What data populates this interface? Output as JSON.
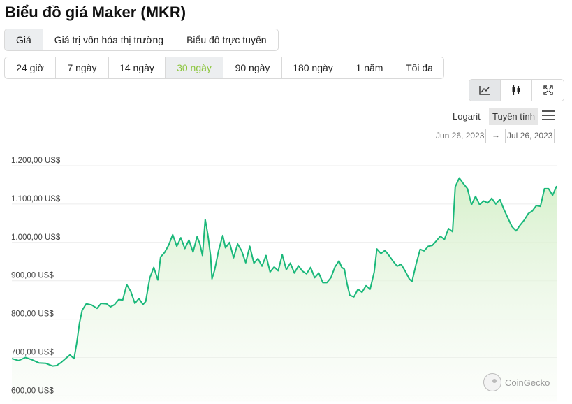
{
  "title": "Biểu đồ giá Maker (MKR)",
  "tabs": [
    {
      "label": "Giá",
      "active": true
    },
    {
      "label": "Giá trị vốn hóa thị trường",
      "active": false
    },
    {
      "label": "Biểu đồ trực tuyến",
      "active": false
    }
  ],
  "ranges": [
    {
      "label": "24 giờ",
      "active": false
    },
    {
      "label": "7 ngày",
      "active": false
    },
    {
      "label": "14 ngày",
      "active": false
    },
    {
      "label": "30 ngày",
      "active": true
    },
    {
      "label": "90 ngày",
      "active": false
    },
    {
      "label": "180 ngày",
      "active": false
    },
    {
      "label": "1 năm",
      "active": false
    },
    {
      "label": "Tối đa",
      "active": false
    }
  ],
  "chart_type_buttons": [
    {
      "icon": "line-chart-icon",
      "active": true
    },
    {
      "icon": "candlestick-icon",
      "active": false
    },
    {
      "icon": "fullscreen-icon",
      "active": false
    }
  ],
  "scale": {
    "log_label": "Logarit",
    "linear_label": "Tuyến tính",
    "selected": "linear"
  },
  "date_range": {
    "from": "Jun 26, 2023",
    "arrow": "→",
    "to": "Jul 26, 2023"
  },
  "watermark": "CoinGecko",
  "colors": {
    "line": "#1ab87a",
    "fill_top": "#d4efc8",
    "active_range": "#8dc63f"
  },
  "chart_data": {
    "type": "area",
    "y_tick_labels": [
      "1.200,00 US$",
      "1.100,00 US$",
      "1.000,00 US$",
      "900,00 US$",
      "800,00 US$",
      "700,00 US$",
      "600,00 US$"
    ],
    "y_ticks": [
      1200,
      1100,
      1000,
      900,
      800,
      700,
      600
    ],
    "ylim": [
      600,
      1200
    ],
    "grid": true,
    "x_start": "2023-06-26",
    "x_end": "2023-07-26",
    "x_unit": "days",
    "series": [
      {
        "values": [
          [
            0.0,
            697
          ],
          [
            0.5,
            692
          ],
          [
            1.0,
            700
          ],
          [
            1.5,
            694
          ],
          [
            2.0,
            686
          ],
          [
            2.5,
            685
          ],
          [
            3.0,
            678
          ],
          [
            3.3,
            679
          ],
          [
            3.6,
            686
          ],
          [
            4.0,
            698
          ],
          [
            4.3,
            707
          ],
          [
            4.6,
            697
          ],
          [
            4.8,
            738
          ],
          [
            5.0,
            790
          ],
          [
            5.2,
            823
          ],
          [
            5.5,
            840
          ],
          [
            5.9,
            837
          ],
          [
            6.3,
            828
          ],
          [
            6.6,
            841
          ],
          [
            7.0,
            840
          ],
          [
            7.3,
            832
          ],
          [
            7.6,
            838
          ],
          [
            7.9,
            851
          ],
          [
            8.2,
            850
          ],
          [
            8.5,
            890
          ],
          [
            8.8,
            872
          ],
          [
            9.1,
            841
          ],
          [
            9.4,
            854
          ],
          [
            9.7,
            838
          ],
          [
            9.9,
            846
          ],
          [
            10.2,
            907
          ],
          [
            10.5,
            935
          ],
          [
            10.8,
            902
          ],
          [
            11.0,
            962
          ],
          [
            11.3,
            974
          ],
          [
            11.6,
            993
          ],
          [
            11.9,
            1020
          ],
          [
            12.2,
            990
          ],
          [
            12.5,
            1012
          ],
          [
            12.8,
            984
          ],
          [
            13.1,
            1006
          ],
          [
            13.4,
            975
          ],
          [
            13.7,
            1015
          ],
          [
            13.9,
            997
          ],
          [
            14.1,
            966
          ],
          [
            14.3,
            1060
          ],
          [
            14.5,
            1020
          ],
          [
            14.7,
            965
          ],
          [
            14.8,
            905
          ],
          [
            15.0,
            928
          ],
          [
            15.3,
            980
          ],
          [
            15.6,
            1018
          ],
          [
            15.8,
            986
          ],
          [
            16.1,
            1000
          ],
          [
            16.4,
            960
          ],
          [
            16.7,
            996
          ],
          [
            17.0,
            978
          ],
          [
            17.3,
            947
          ],
          [
            17.6,
            990
          ],
          [
            17.9,
            946
          ],
          [
            18.2,
            958
          ],
          [
            18.5,
            938
          ],
          [
            18.8,
            966
          ],
          [
            19.1,
            923
          ],
          [
            19.4,
            936
          ],
          [
            19.7,
            926
          ],
          [
            20.0,
            968
          ],
          [
            20.3,
            929
          ],
          [
            20.6,
            946
          ],
          [
            20.9,
            920
          ],
          [
            21.2,
            939
          ],
          [
            21.5,
            925
          ],
          [
            21.8,
            918
          ],
          [
            22.1,
            935
          ],
          [
            22.4,
            908
          ],
          [
            22.7,
            920
          ],
          [
            23.0,
            895
          ],
          [
            23.3,
            895
          ],
          [
            23.6,
            908
          ],
          [
            23.9,
            936
          ],
          [
            24.2,
            952
          ],
          [
            24.4,
            935
          ],
          [
            24.6,
            930
          ],
          [
            24.8,
            891
          ],
          [
            25.0,
            862
          ],
          [
            25.3,
            858
          ],
          [
            25.6,
            878
          ],
          [
            25.9,
            870
          ],
          [
            26.2,
            887
          ],
          [
            26.5,
            878
          ],
          [
            26.8,
            922
          ],
          [
            27.0,
            983
          ],
          [
            27.3,
            971
          ],
          [
            27.6,
            979
          ],
          [
            27.9,
            966
          ],
          [
            28.2,
            951
          ],
          [
            28.5,
            938
          ],
          [
            28.8,
            943
          ],
          [
            29.1,
            925
          ],
          [
            29.4,
            905
          ],
          [
            29.6,
            898
          ],
          [
            29.9,
            943
          ],
          [
            30.2,
            982
          ],
          [
            30.5,
            978
          ],
          [
            30.8,
            990
          ],
          [
            31.1,
            992
          ],
          [
            31.4,
            1004
          ],
          [
            31.7,
            1016
          ],
          [
            32.0,
            1008
          ],
          [
            32.3,
            1036
          ],
          [
            32.6,
            1028
          ],
          [
            32.8,
            1145
          ],
          [
            33.1,
            1168
          ],
          [
            33.4,
            1153
          ],
          [
            33.7,
            1140
          ],
          [
            34.0,
            1098
          ],
          [
            34.3,
            1120
          ],
          [
            34.6,
            1098
          ],
          [
            34.9,
            1108
          ],
          [
            35.2,
            1103
          ],
          [
            35.5,
            1115
          ],
          [
            35.8,
            1100
          ],
          [
            36.1,
            1112
          ],
          [
            36.4,
            1086
          ],
          [
            36.7,
            1063
          ],
          [
            37.0,
            1041
          ],
          [
            37.3,
            1030
          ],
          [
            37.6,
            1045
          ],
          [
            37.9,
            1058
          ],
          [
            38.2,
            1075
          ],
          [
            38.5,
            1082
          ],
          [
            38.8,
            1096
          ],
          [
            39.1,
            1094
          ],
          [
            39.4,
            1140
          ],
          [
            39.7,
            1140
          ],
          [
            40.0,
            1123
          ],
          [
            40.3,
            1147
          ]
        ]
      }
    ]
  }
}
